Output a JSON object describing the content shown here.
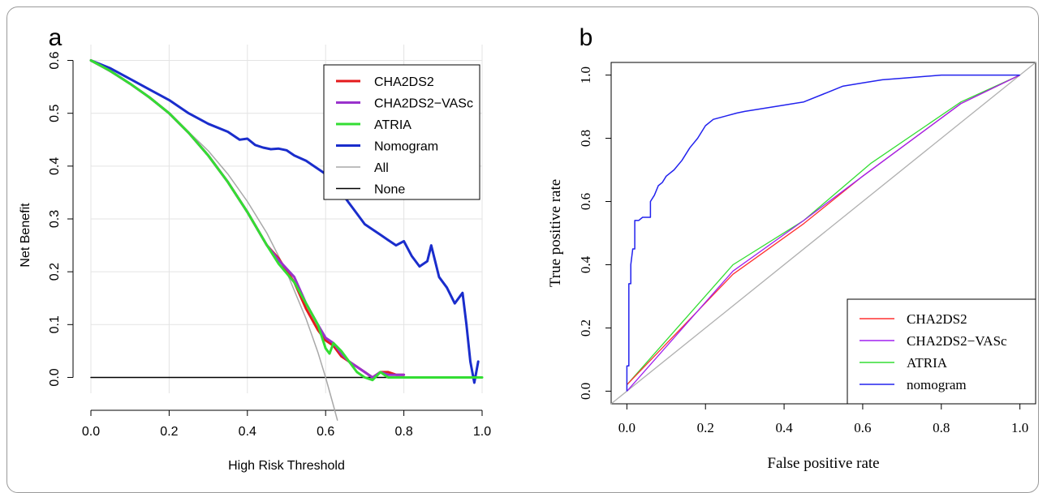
{
  "chart_data": [
    {
      "panel_label": "a",
      "type": "line",
      "xlabel": "High Risk Threshold",
      "ylabel": "Net Benefit",
      "xlim": [
        0.0,
        1.0
      ],
      "ylim": [
        -0.03,
        0.63
      ],
      "xticks": [
        "0.0",
        "0.2",
        "0.4",
        "0.6",
        "0.8",
        "1.0"
      ],
      "yticks": [
        "0.0",
        "0.1",
        "0.2",
        "0.3",
        "0.4",
        "0.5",
        "0.6"
      ],
      "grid": true,
      "legend_position": "top-right",
      "series": [
        {
          "name": "CHA2DS2",
          "color": "#e41a1c",
          "width": 3,
          "x": [
            0.0,
            0.05,
            0.1,
            0.15,
            0.2,
            0.25,
            0.3,
            0.35,
            0.4,
            0.45,
            0.48,
            0.52,
            0.55,
            0.58,
            0.6,
            0.62,
            0.64,
            0.66,
            0.68,
            0.7,
            0.72,
            0.74,
            0.76,
            0.78,
            0.8
          ],
          "y": [
            0.6,
            0.58,
            0.556,
            0.53,
            0.5,
            0.463,
            0.42,
            0.37,
            0.313,
            0.25,
            0.225,
            0.18,
            0.13,
            0.09,
            0.07,
            0.06,
            0.04,
            0.03,
            0.02,
            0.01,
            0.0,
            0.01,
            0.01,
            0.005,
            0.005
          ]
        },
        {
          "name": "CHA2DS2−VASc",
          "color": "#9932cc",
          "width": 3,
          "x": [
            0.0,
            0.05,
            0.1,
            0.15,
            0.2,
            0.25,
            0.3,
            0.35,
            0.4,
            0.45,
            0.48,
            0.52,
            0.55,
            0.58,
            0.6,
            0.62,
            0.64,
            0.66,
            0.68,
            0.7,
            0.72,
            0.74,
            0.76,
            0.78,
            0.8
          ],
          "y": [
            0.6,
            0.58,
            0.556,
            0.53,
            0.5,
            0.463,
            0.42,
            0.37,
            0.313,
            0.25,
            0.222,
            0.19,
            0.14,
            0.1,
            0.075,
            0.065,
            0.045,
            0.03,
            0.02,
            0.01,
            0.0,
            0.01,
            0.005,
            0.005,
            0.005
          ]
        },
        {
          "name": "ATRIA",
          "color": "#33dd33",
          "width": 3,
          "x": [
            0.0,
            0.05,
            0.1,
            0.15,
            0.2,
            0.25,
            0.3,
            0.35,
            0.4,
            0.45,
            0.48,
            0.52,
            0.55,
            0.58,
            0.6,
            0.61,
            0.62,
            0.64,
            0.66,
            0.68,
            0.7,
            0.72,
            0.74,
            0.76,
            0.8,
            1.0
          ],
          "y": [
            0.6,
            0.58,
            0.556,
            0.53,
            0.5,
            0.463,
            0.42,
            0.37,
            0.313,
            0.25,
            0.215,
            0.18,
            0.14,
            0.1,
            0.055,
            0.045,
            0.065,
            0.05,
            0.03,
            0.01,
            0.0,
            -0.005,
            0.01,
            0.0,
            0.0,
            0.0
          ]
        },
        {
          "name": "Nomogram",
          "color": "#1a2dcc",
          "width": 3,
          "x": [
            0.0,
            0.05,
            0.1,
            0.15,
            0.2,
            0.25,
            0.3,
            0.35,
            0.38,
            0.4,
            0.42,
            0.44,
            0.46,
            0.48,
            0.5,
            0.52,
            0.55,
            0.58,
            0.6,
            0.62,
            0.64,
            0.66,
            0.68,
            0.7,
            0.72,
            0.74,
            0.76,
            0.78,
            0.8,
            0.82,
            0.84,
            0.86,
            0.87,
            0.89,
            0.91,
            0.93,
            0.95,
            0.96,
            0.97,
            0.98,
            0.99
          ],
          "y": [
            0.6,
            0.585,
            0.565,
            0.545,
            0.525,
            0.5,
            0.48,
            0.465,
            0.45,
            0.452,
            0.44,
            0.435,
            0.432,
            0.433,
            0.43,
            0.42,
            0.41,
            0.395,
            0.385,
            0.37,
            0.35,
            0.33,
            0.31,
            0.29,
            0.28,
            0.27,
            0.26,
            0.25,
            0.258,
            0.23,
            0.21,
            0.22,
            0.25,
            0.19,
            0.17,
            0.14,
            0.16,
            0.1,
            0.03,
            -0.01,
            0.03
          ]
        },
        {
          "name": "All",
          "color": "#a8a8a8",
          "width": 1.5,
          "x": [
            0.0,
            0.1,
            0.2,
            0.3,
            0.35,
            0.4,
            0.45,
            0.5,
            0.55,
            0.58,
            0.6,
            0.62,
            0.63
          ],
          "y": [
            0.6,
            0.556,
            0.5,
            0.429,
            0.385,
            0.333,
            0.273,
            0.2,
            0.111,
            0.048,
            0.0,
            -0.053,
            -0.081
          ]
        },
        {
          "name": "None",
          "color": "#000000",
          "width": 1.5,
          "x": [
            0.0,
            1.0
          ],
          "y": [
            0.0,
            0.0
          ]
        }
      ]
    },
    {
      "panel_label": "b",
      "type": "line",
      "xlabel": "False positive rate",
      "ylabel": "True positive rate",
      "xlim": [
        -0.04,
        1.04
      ],
      "ylim": [
        -0.04,
        1.04
      ],
      "xticks": [
        "0.0",
        "0.2",
        "0.4",
        "0.6",
        "0.8",
        "1.0"
      ],
      "yticks": [
        "0.0",
        "0.2",
        "0.4",
        "0.6",
        "0.8",
        "1.0"
      ],
      "grid": false,
      "legend_position": "bottom-right",
      "series": [
        {
          "name": "CHA2DS2",
          "color": "#ff3030",
          "width": 1.3,
          "x": [
            0.0,
            0.27,
            0.45,
            0.6,
            0.85,
            1.0
          ],
          "y": [
            0.02,
            0.37,
            0.53,
            0.68,
            0.91,
            1.0
          ]
        },
        {
          "name": "CHA2DS2−VASc",
          "color": "#a020f0",
          "width": 1.3,
          "x": [
            0.0,
            0.27,
            0.45,
            0.6,
            0.85,
            1.0
          ],
          "y": [
            0.0,
            0.38,
            0.54,
            0.68,
            0.91,
            1.0
          ]
        },
        {
          "name": "ATRIA",
          "color": "#33dd33",
          "width": 1.3,
          "x": [
            0.0,
            0.27,
            0.45,
            0.62,
            0.85,
            1.0
          ],
          "y": [
            0.02,
            0.4,
            0.54,
            0.72,
            0.915,
            1.0
          ]
        },
        {
          "name": "nomogram",
          "color": "#2222ee",
          "width": 1.5,
          "x": [
            0.0,
            0.0,
            0.005,
            0.005,
            0.01,
            0.01,
            0.015,
            0.02,
            0.02,
            0.03,
            0.04,
            0.06,
            0.06,
            0.07,
            0.08,
            0.09,
            0.1,
            0.12,
            0.14,
            0.16,
            0.18,
            0.2,
            0.22,
            0.25,
            0.28,
            0.3,
            0.35,
            0.4,
            0.45,
            0.5,
            0.55,
            0.6,
            0.65,
            0.7,
            0.8,
            0.9,
            1.0
          ],
          "y": [
            0.0,
            0.08,
            0.08,
            0.34,
            0.34,
            0.4,
            0.45,
            0.45,
            0.54,
            0.54,
            0.55,
            0.55,
            0.6,
            0.62,
            0.65,
            0.66,
            0.68,
            0.7,
            0.73,
            0.77,
            0.8,
            0.84,
            0.86,
            0.87,
            0.88,
            0.885,
            0.895,
            0.905,
            0.915,
            0.94,
            0.965,
            0.975,
            0.985,
            0.99,
            1.0,
            1.0,
            1.0
          ]
        },
        {
          "name": "",
          "color": "#b0b0b0",
          "width": 1.3,
          "x": [
            -0.04,
            1.04
          ],
          "y": [
            -0.04,
            1.04
          ]
        }
      ]
    }
  ]
}
